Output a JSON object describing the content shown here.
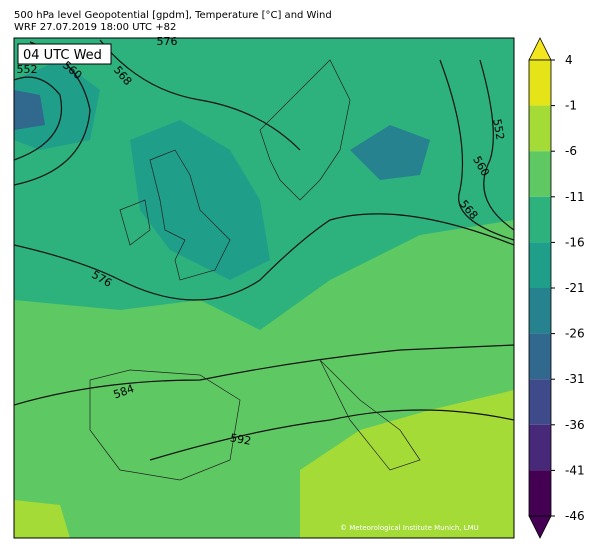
{
  "header": {
    "title_line1": "500 hPa level Geopotential [gpdm], Temperature [°C] and Wind",
    "title_line2": "WRF 27.07.2019 18:00 UTC +82"
  },
  "map": {
    "time_label": "04 UTC Wed",
    "contour_labels": [
      "552",
      "560",
      "568",
      "576",
      "552",
      "560",
      "568",
      "576",
      "584",
      "592"
    ],
    "copyright": "© Meteorological Institute Munich, LMU"
  },
  "colorbar": {
    "ticks": [
      4,
      -1,
      -6,
      -11,
      -16,
      -21,
      -26,
      -31,
      -36,
      -41,
      -46
    ],
    "colors": [
      "#e5e419",
      "#a5db36",
      "#5ec962",
      "#2db27d",
      "#1f9e89",
      "#26828e",
      "#31688e",
      "#3e4a89",
      "#482878",
      "#440154"
    ],
    "over_color": "#f4e61e",
    "under_color": "#440154"
  }
}
